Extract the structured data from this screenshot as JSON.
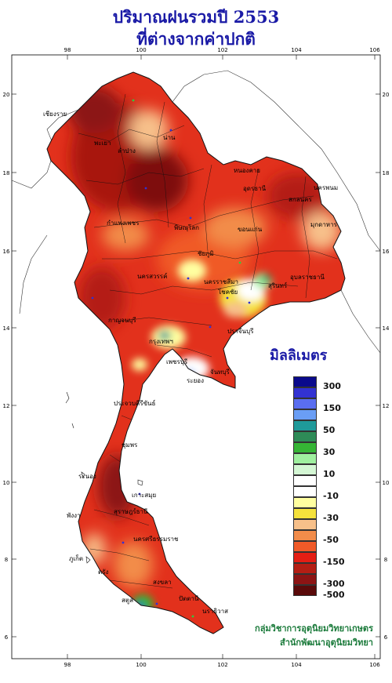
{
  "title_line1": "ปริมาณฝนรวมปี 2553",
  "title_line2": "ที่ต่างจากค่าปกติ",
  "units_label": "มิลลิเมตร",
  "longitude_ticks": [
    "98",
    "100",
    "102",
    "104",
    "106"
  ],
  "latitude_ticks": [
    "20",
    "18",
    "16",
    "14",
    "12",
    "10",
    "8",
    "6"
  ],
  "legend": {
    "swatches": [
      {
        "color": "#0a0a8c",
        "label": "300"
      },
      {
        "color": "#3232d2",
        "label": ""
      },
      {
        "color": "#5a6ef0",
        "label": "150"
      },
      {
        "color": "#6a9ef5",
        "label": ""
      },
      {
        "color": "#1f9a9a",
        "label": "50"
      },
      {
        "color": "#2e8b57",
        "label": ""
      },
      {
        "color": "#35b535",
        "label": "30"
      },
      {
        "color": "#9ff09f",
        "label": ""
      },
      {
        "color": "#d4f7d4",
        "label": "10"
      },
      {
        "color": "#ffffff",
        "label": ""
      },
      {
        "color": "#ffffff",
        "label": "-10"
      },
      {
        "color": "#ffffa0",
        "label": ""
      },
      {
        "color": "#f5e23c",
        "label": "-30"
      },
      {
        "color": "#f7c08a",
        "label": ""
      },
      {
        "color": "#f28c4a",
        "label": "-50"
      },
      {
        "color": "#f05a28",
        "label": ""
      },
      {
        "color": "#e41e14",
        "label": "-150"
      },
      {
        "color": "#b41e14",
        "label": ""
      },
      {
        "color": "#8c1414",
        "label": "-300"
      },
      {
        "color": "#5a0a0a",
        "label": "-500"
      }
    ]
  },
  "credit_line1": "กลุ่มวิชาการอุตุนิยมวิทยาเกษตร",
  "credit_line2": "สำนักพัฒนาอุตุนิยมวิทยา",
  "place_labels": [
    {
      "id": "chiang-rai",
      "text": "เชียงราย"
    },
    {
      "id": "phayao",
      "text": "พะเยา"
    },
    {
      "id": "nan",
      "text": "น่าน"
    },
    {
      "id": "lampang",
      "text": "ลำปาง"
    },
    {
      "id": "nong-khai",
      "text": "หนองคาย"
    },
    {
      "id": "udon",
      "text": "อุดรธานี"
    },
    {
      "id": "nakhon-phanom",
      "text": "นครพนม"
    },
    {
      "id": "sakon",
      "text": "สกลนคร"
    },
    {
      "id": "phitsanulok",
      "text": "พิษณุโลก"
    },
    {
      "id": "khon-kaen",
      "text": "ขอนแก่น"
    },
    {
      "id": "mukdahan",
      "text": "มุกดาหาร"
    },
    {
      "id": "kamphaeng",
      "text": "กำแพงเพชร"
    },
    {
      "id": "nakhon-sawan",
      "text": "นครสวรรค์"
    },
    {
      "id": "chaiyaphum",
      "text": "ชัยภูมิ"
    },
    {
      "id": "nakhon-ratchasima",
      "text": "นครราชสีมา"
    },
    {
      "id": "surin",
      "text": "สุรินทร์"
    },
    {
      "id": "ubon",
      "text": "อุบลราชธานี"
    },
    {
      "id": "chok-chai",
      "text": "โชคชัย"
    },
    {
      "id": "kanchanaburi",
      "text": "กาญจนบุรี"
    },
    {
      "id": "prachin",
      "text": "ปราจีนบุรี"
    },
    {
      "id": "bangkok",
      "text": "กรุงเทพฯ"
    },
    {
      "id": "phetchaburi",
      "text": "เพชรบุรี"
    },
    {
      "id": "rayong",
      "text": "ระยอง"
    },
    {
      "id": "chanthaburi",
      "text": "จันทบุรี"
    },
    {
      "id": "prachuap",
      "text": "ประจวบคีรีขันธ์"
    },
    {
      "id": "chumphon",
      "text": "ชุมพร"
    },
    {
      "id": "ranong",
      "text": "ระนอง"
    },
    {
      "id": "ko-samui",
      "text": "เกาะสมุย"
    },
    {
      "id": "surat",
      "text": "สุราษฎร์ธานี"
    },
    {
      "id": "phang-nga",
      "text": "พังงา"
    },
    {
      "id": "nakhon-si",
      "text": "นครศรีธรรมราช"
    },
    {
      "id": "phuket",
      "text": "ภูเก็ต"
    },
    {
      "id": "trang",
      "text": "ตรัง"
    },
    {
      "id": "songkhla",
      "text": "สงขลา"
    },
    {
      "id": "satun",
      "text": "สตูล"
    },
    {
      "id": "pattani",
      "text": "ปัตตานี"
    },
    {
      "id": "narathiwat",
      "text": "นราธิวาส"
    }
  ]
}
